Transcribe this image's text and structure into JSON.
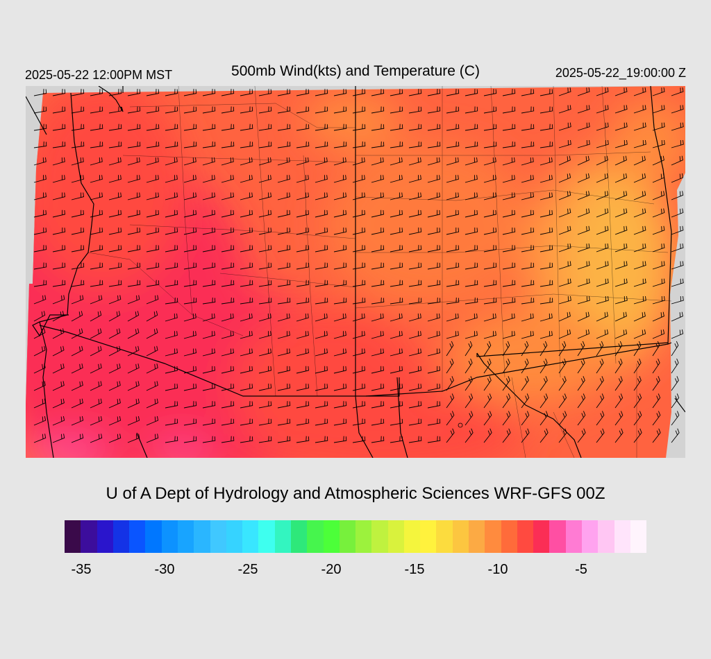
{
  "header": {
    "valid_local": "2025-05-22 12:00PM MST",
    "title": "500mb Wind(kts) and Temperature (C)",
    "valid_utc": "2025-05-22_19:00:00 Z"
  },
  "footer": {
    "credit": "U of A Dept of Hydrology and Atmospheric Sciences WRF-GFS 00Z"
  },
  "map": {
    "variable": "500mb temperature shading with wind barbs",
    "region": "southwestern United States",
    "colors": {
      "background": "#e6e6e6",
      "outside_domain": "#d3d3d3",
      "boundaries": "#000000",
      "barbs": "#000000"
    }
  },
  "colorbar": {
    "colors": [
      "#3a0a4a",
      "#3c0d9c",
      "#2a15cc",
      "#1433e6",
      "#0a55ff",
      "#0077ff",
      "#0d92ff",
      "#18a4ff",
      "#2ab6ff",
      "#40c8ff",
      "#36d3ff",
      "#39e6ff",
      "#3effef",
      "#33f5c0",
      "#2ee87a",
      "#46f54d",
      "#4cff39",
      "#77f03c",
      "#9cf23d",
      "#bff23f",
      "#d9f23d",
      "#f4f53d",
      "#fff23d",
      "#fcdc3e",
      "#fcc640",
      "#fcaa44",
      "#ff8b3e",
      "#ff6b3a",
      "#ff4a40",
      "#fb2e55",
      "#ff4fa3",
      "#ff7bd3",
      "#ffa3ef",
      "#ffc6f3",
      "#ffe4fb",
      "#fff4fd"
    ],
    "tick_labels": [
      "-35",
      "-30",
      "-25",
      "-20",
      "-15",
      "-10",
      "-5"
    ]
  }
}
